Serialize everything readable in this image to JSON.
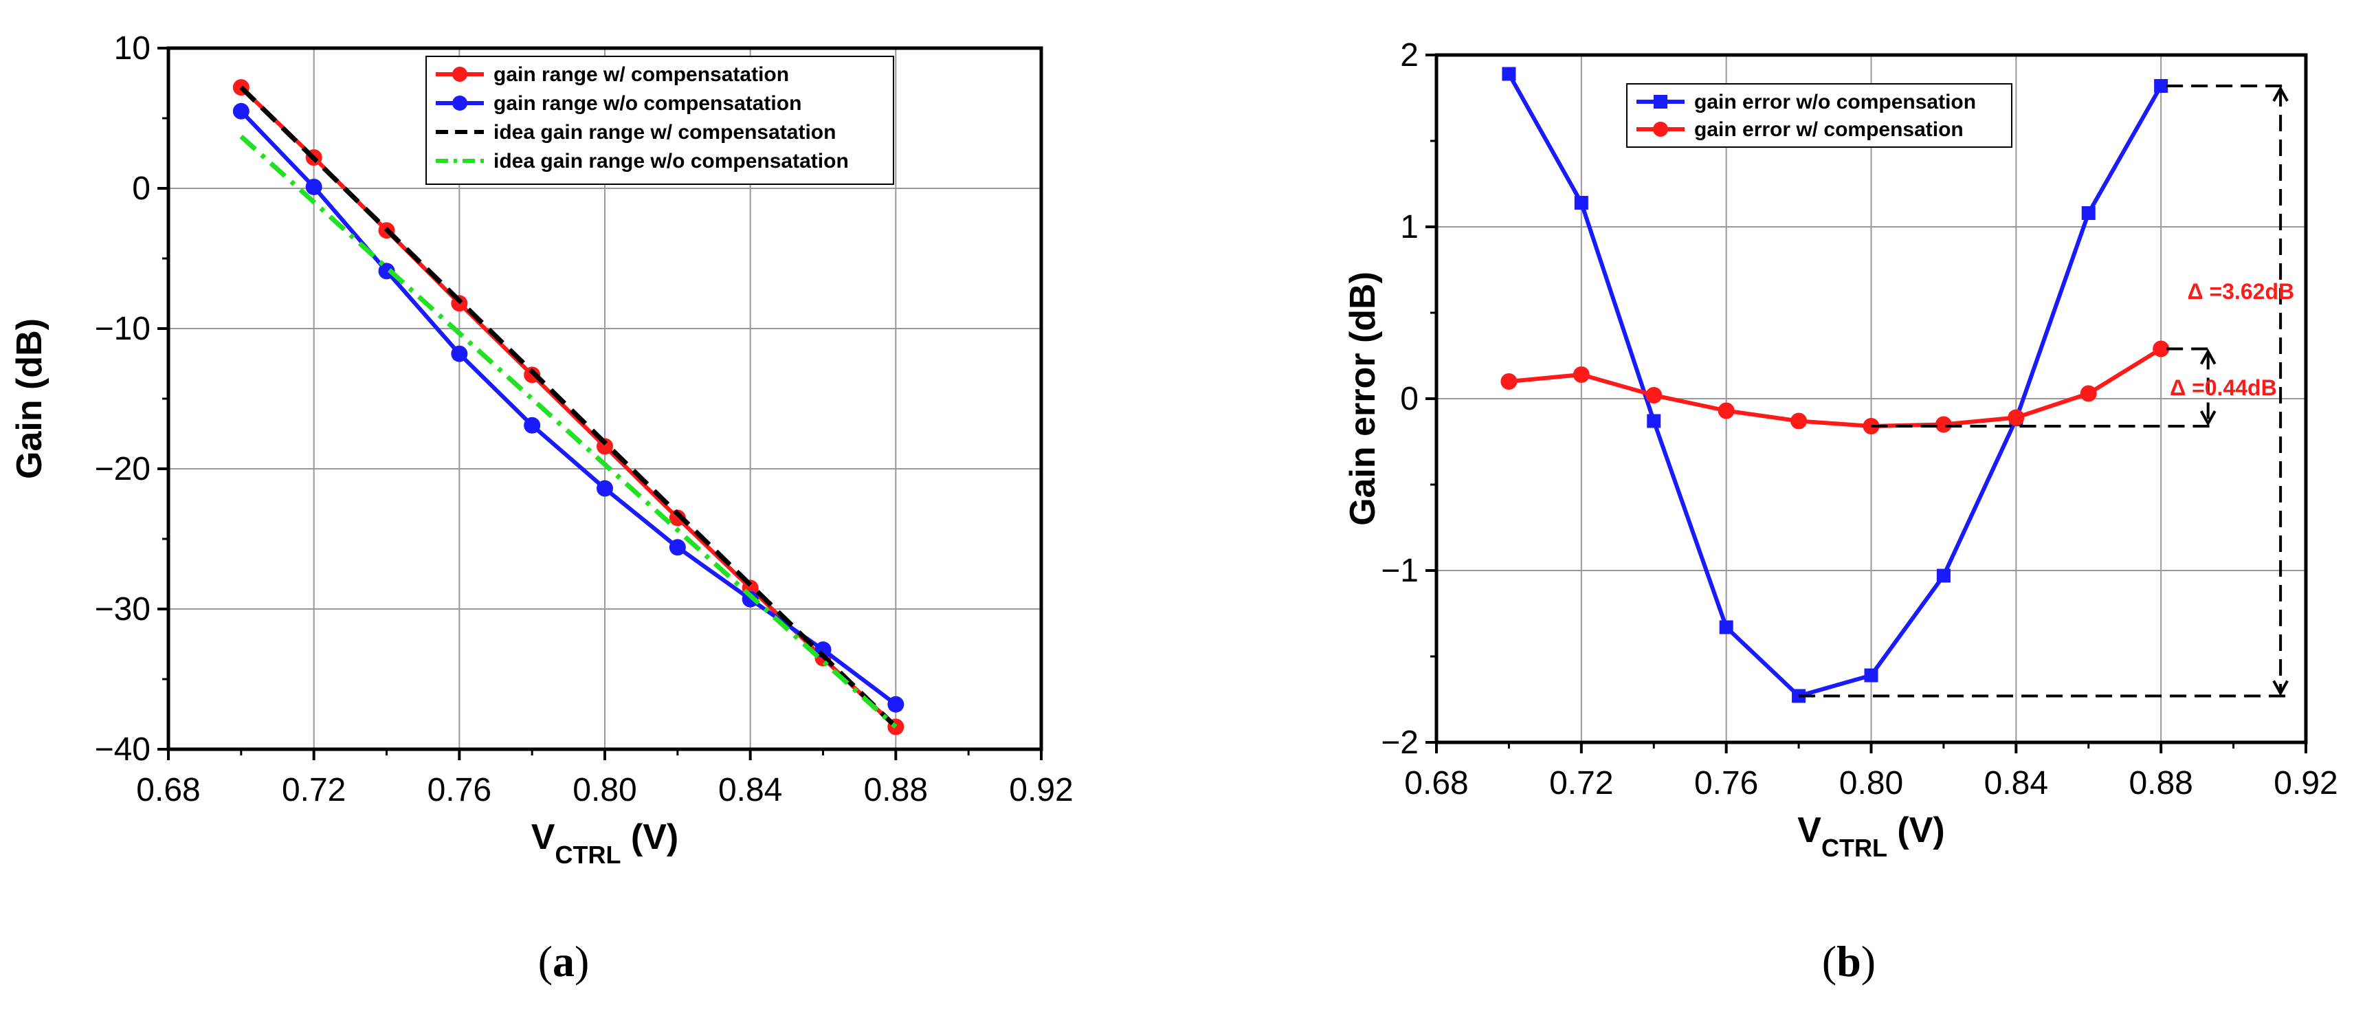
{
  "chart_data": [
    {
      "panel": "(a)",
      "type": "line",
      "xlabel": "V",
      "xlabel_sub": "CTRL",
      "xlabel_suffix": " (V)",
      "ylabel": "Gain (dB)",
      "xlim": [
        0.68,
        0.92
      ],
      "ylim": [
        -40,
        10
      ],
      "xticks": [
        0.68,
        0.72,
        0.76,
        0.8,
        0.84,
        0.88,
        0.92
      ],
      "xtick_labels": [
        "0.68",
        "0.72",
        "0.76",
        "0.80",
        "0.84",
        "0.88",
        "0.92"
      ],
      "yticks": [
        -40,
        -30,
        -20,
        -10,
        0,
        10
      ],
      "ytick_labels": [
        "−40",
        "−30",
        "−20",
        "−10",
        "0",
        "10"
      ],
      "grid": true,
      "legend_position": "top-right",
      "series": [
        {
          "name": "gain range w/ compensatation",
          "color": "#ff1a1a",
          "style": "solid",
          "marker": "circle",
          "x": [
            0.7,
            0.72,
            0.74,
            0.76,
            0.78,
            0.8,
            0.82,
            0.84,
            0.86,
            0.88
          ],
          "y": [
            7.2,
            2.2,
            -3.0,
            -8.2,
            -13.3,
            -18.4,
            -23.5,
            -28.5,
            -33.5,
            -38.4
          ]
        },
        {
          "name": "gain range w/o compensatation",
          "color": "#1a1aff",
          "style": "solid",
          "marker": "circle",
          "x": [
            0.7,
            0.72,
            0.74,
            0.76,
            0.78,
            0.8,
            0.82,
            0.84,
            0.86,
            0.88
          ],
          "y": [
            5.5,
            0.1,
            -5.9,
            -11.8,
            -16.9,
            -21.4,
            -25.6,
            -29.3,
            -32.9,
            -36.8
          ]
        },
        {
          "name": "idea gain range w/ compensatation",
          "color": "#000000",
          "style": "dashed",
          "marker": "none",
          "x": [
            0.7,
            0.88
          ],
          "y": [
            7.2,
            -38.4
          ]
        },
        {
          "name": "idea gain range w/o compensatation",
          "color": "#22e022",
          "style": "dashdot",
          "marker": "none",
          "x": [
            0.7,
            0.88
          ],
          "y": [
            3.7,
            -38.4
          ]
        }
      ]
    },
    {
      "panel": "(b)",
      "type": "line",
      "xlabel": "V",
      "xlabel_sub": "CTRL",
      "xlabel_suffix": " (V)",
      "ylabel": "Gain error (dB)",
      "xlim": [
        0.68,
        0.92
      ],
      "ylim": [
        -2,
        2
      ],
      "xticks": [
        0.68,
        0.72,
        0.76,
        0.8,
        0.84,
        0.88,
        0.92
      ],
      "xtick_labels": [
        "0.68",
        "0.72",
        "0.76",
        "0.80",
        "0.84",
        "0.88",
        "0.92"
      ],
      "yticks": [
        -2,
        -1,
        0,
        1,
        2
      ],
      "ytick_labels": [
        "−2",
        "−1",
        "0",
        "1",
        "2"
      ],
      "grid": true,
      "legend_position": "top-left",
      "series": [
        {
          "name": "gain error w/o compensation",
          "color": "#1a1aff",
          "style": "solid",
          "marker": "square",
          "x": [
            0.7,
            0.72,
            0.74,
            0.76,
            0.78,
            0.8,
            0.82,
            0.84,
            0.86,
            0.88
          ],
          "y": [
            1.89,
            1.14,
            -0.13,
            -1.33,
            -1.73,
            -1.61,
            -1.03,
            -0.12,
            1.08,
            1.82
          ]
        },
        {
          "name": "gain error w/ compensation",
          "color": "#ff1a1a",
          "style": "solid",
          "marker": "circle",
          "x": [
            0.7,
            0.72,
            0.74,
            0.76,
            0.78,
            0.8,
            0.82,
            0.84,
            0.86,
            0.88
          ],
          "y": [
            0.1,
            0.14,
            0.02,
            -0.07,
            -0.13,
            -0.16,
            -0.15,
            -0.11,
            0.03,
            0.29
          ]
        }
      ],
      "annotations": [
        {
          "text": "Δ =3.62dB",
          "color": "#ff1a1a",
          "y_top": 1.82,
          "y_bottom": -1.73,
          "x_arrow": 0.913
        },
        {
          "text": "Δ =0.44dB",
          "color": "#ff1a1a",
          "y_top": 0.29,
          "y_bottom": -0.16,
          "x_arrow": 0.893
        }
      ]
    }
  ]
}
